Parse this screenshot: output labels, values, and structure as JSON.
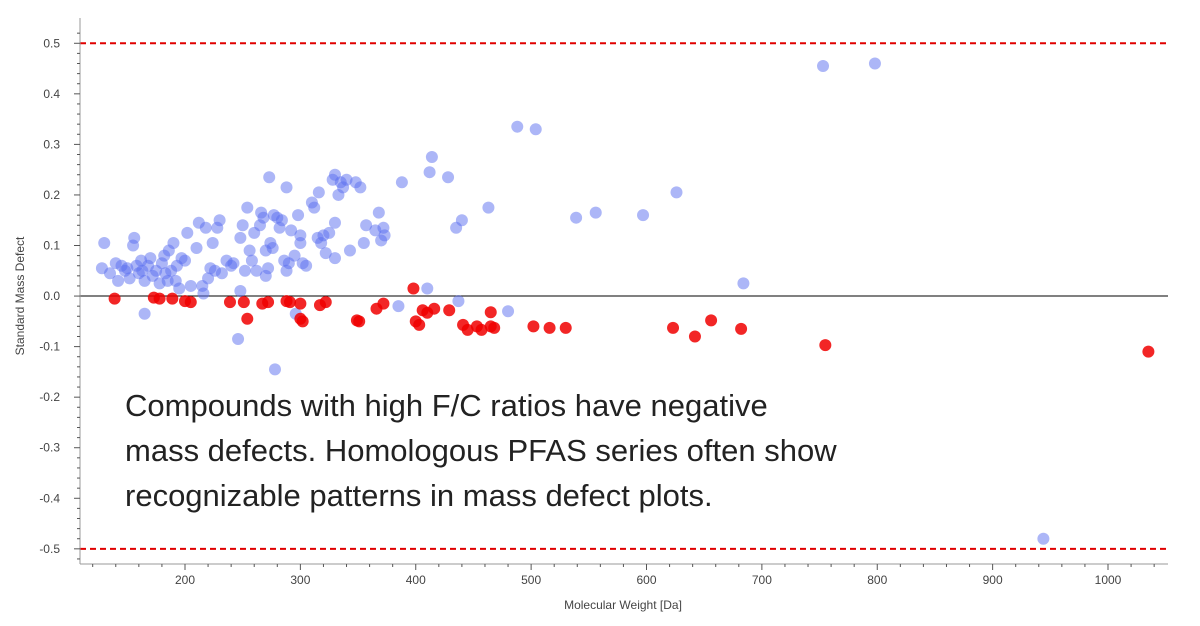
{
  "chart_data": {
    "type": "scatter",
    "title": "",
    "xlabel": "Molecular Weight [Da]",
    "ylabel": "Standard Mass Defect",
    "xlim": [
      109,
      1052
    ],
    "ylim": [
      -0.53,
      0.55
    ],
    "x_ticks": [
      200,
      300,
      400,
      500,
      600,
      700,
      800,
      900,
      1000
    ],
    "y_ticks": [
      "0.5",
      "0.4",
      "0.3",
      "0.2",
      "0.1",
      "0.0",
      "-0.1",
      "-0.2",
      "-0.3",
      "-0.4",
      "-0.5"
    ],
    "grid": false,
    "reference_lines": [
      {
        "y": 0.5,
        "color": "#e00000",
        "style": "dashed"
      },
      {
        "y": -0.5,
        "color": "#e00000",
        "style": "dashed"
      },
      {
        "y": 0.0,
        "color": "#000000",
        "style": "solid"
      }
    ],
    "series": [
      {
        "color": "#5a6ef0",
        "points": [
          [
            128,
            0.055
          ],
          [
            130,
            0.105
          ],
          [
            135,
            0.045
          ],
          [
            140,
            0.065
          ],
          [
            142,
            0.03
          ],
          [
            145,
            0.06
          ],
          [
            148,
            0.05
          ],
          [
            150,
            0.055
          ],
          [
            152,
            0.035
          ],
          [
            155,
            0.1
          ],
          [
            156,
            0.115
          ],
          [
            158,
            0.06
          ],
          [
            160,
            0.045
          ],
          [
            162,
            0.07
          ],
          [
            163,
            0.05
          ],
          [
            165,
            -0.035
          ],
          [
            165,
            0.03
          ],
          [
            168,
            0.06
          ],
          [
            170,
            0.075
          ],
          [
            172,
            0.04
          ],
          [
            175,
            0.05
          ],
          [
            178,
            0.025
          ],
          [
            180,
            0.065
          ],
          [
            182,
            0.08
          ],
          [
            183,
            0.045
          ],
          [
            185,
            0.03
          ],
          [
            186,
            0.09
          ],
          [
            188,
            0.05
          ],
          [
            190,
            0.105
          ],
          [
            192,
            0.03
          ],
          [
            193,
            0.06
          ],
          [
            195,
            0.015
          ],
          [
            197,
            0.075
          ],
          [
            200,
            0.07
          ],
          [
            202,
            0.125
          ],
          [
            205,
            0.02
          ],
          [
            210,
            0.095
          ],
          [
            212,
            0.145
          ],
          [
            215,
            0.02
          ],
          [
            216,
            0.005
          ],
          [
            218,
            0.135
          ],
          [
            220,
            0.035
          ],
          [
            222,
            0.055
          ],
          [
            224,
            0.105
          ],
          [
            226,
            0.05
          ],
          [
            228,
            0.135
          ],
          [
            230,
            0.15
          ],
          [
            232,
            0.045
          ],
          [
            236,
            0.07
          ],
          [
            240,
            0.06
          ],
          [
            242,
            0.065
          ],
          [
            246,
            -0.085
          ],
          [
            248,
            0.115
          ],
          [
            248,
            0.01
          ],
          [
            250,
            0.14
          ],
          [
            252,
            0.05
          ],
          [
            254,
            0.175
          ],
          [
            256,
            0.09
          ],
          [
            258,
            0.07
          ],
          [
            260,
            0.125
          ],
          [
            262,
            0.05
          ],
          [
            265,
            0.14
          ],
          [
            266,
            0.165
          ],
          [
            268,
            0.155
          ],
          [
            270,
            0.04
          ],
          [
            270,
            0.09
          ],
          [
            272,
            0.055
          ],
          [
            273,
            0.235
          ],
          [
            274,
            0.105
          ],
          [
            276,
            0.095
          ],
          [
            277,
            0.16
          ],
          [
            278,
            -0.145
          ],
          [
            280,
            0.155
          ],
          [
            282,
            0.135
          ],
          [
            284,
            0.15
          ],
          [
            286,
            0.07
          ],
          [
            288,
            0.215
          ],
          [
            288,
            0.05
          ],
          [
            290,
            0.065
          ],
          [
            292,
            0.13
          ],
          [
            295,
            0.08
          ],
          [
            296,
            -0.035
          ],
          [
            298,
            0.16
          ],
          [
            300,
            0.12
          ],
          [
            300,
            0.105
          ],
          [
            302,
            0.065
          ],
          [
            305,
            0.06
          ],
          [
            310,
            0.185
          ],
          [
            312,
            0.175
          ],
          [
            315,
            0.115
          ],
          [
            316,
            0.205
          ],
          [
            318,
            0.105
          ],
          [
            320,
            0.12
          ],
          [
            322,
            0.085
          ],
          [
            325,
            0.125
          ],
          [
            328,
            0.23
          ],
          [
            330,
            0.24
          ],
          [
            330,
            0.145
          ],
          [
            330,
            0.075
          ],
          [
            333,
            0.2
          ],
          [
            335,
            0.225
          ],
          [
            337,
            0.215
          ],
          [
            340,
            0.23
          ],
          [
            343,
            0.09
          ],
          [
            348,
            0.225
          ],
          [
            352,
            0.215
          ],
          [
            355,
            0.105
          ],
          [
            357,
            0.14
          ],
          [
            365,
            0.13
          ],
          [
            368,
            0.165
          ],
          [
            370,
            0.11
          ],
          [
            372,
            0.135
          ],
          [
            373,
            0.12
          ],
          [
            385,
            -0.02
          ],
          [
            388,
            0.225
          ],
          [
            410,
            0.015
          ],
          [
            412,
            0.245
          ],
          [
            414,
            0.275
          ],
          [
            428,
            0.235
          ],
          [
            435,
            0.135
          ],
          [
            437,
            -0.01
          ],
          [
            440,
            0.15
          ],
          [
            463,
            0.175
          ],
          [
            480,
            -0.03
          ],
          [
            488,
            0.335
          ],
          [
            504,
            0.33
          ],
          [
            539,
            0.155
          ],
          [
            556,
            0.165
          ],
          [
            597,
            0.16
          ],
          [
            626,
            0.205
          ],
          [
            684,
            0.025
          ],
          [
            753,
            0.455
          ],
          [
            798,
            0.46
          ],
          [
            944,
            -0.48
          ]
        ]
      },
      {
        "color": "#f00000",
        "points": [
          [
            139,
            -0.005
          ],
          [
            173,
            -0.003
          ],
          [
            178,
            -0.005
          ],
          [
            189,
            -0.005
          ],
          [
            200,
            -0.01
          ],
          [
            205,
            -0.012
          ],
          [
            239,
            -0.012
          ],
          [
            251,
            -0.012
          ],
          [
            254,
            -0.045
          ],
          [
            267,
            -0.015
          ],
          [
            272,
            -0.012
          ],
          [
            288,
            -0.01
          ],
          [
            291,
            -0.012
          ],
          [
            300,
            -0.015
          ],
          [
            300,
            -0.045
          ],
          [
            302,
            -0.05
          ],
          [
            317,
            -0.018
          ],
          [
            322,
            -0.012
          ],
          [
            349,
            -0.048
          ],
          [
            351,
            -0.05
          ],
          [
            366,
            -0.025
          ],
          [
            372,
            -0.015
          ],
          [
            398,
            0.015
          ],
          [
            400,
            -0.05
          ],
          [
            403,
            -0.057
          ],
          [
            406,
            -0.028
          ],
          [
            410,
            -0.033
          ],
          [
            416,
            -0.025
          ],
          [
            429,
            -0.028
          ],
          [
            441,
            -0.057
          ],
          [
            445,
            -0.067
          ],
          [
            453,
            -0.06
          ],
          [
            457,
            -0.067
          ],
          [
            465,
            -0.032
          ],
          [
            465,
            -0.06
          ],
          [
            468,
            -0.063
          ],
          [
            502,
            -0.06
          ],
          [
            516,
            -0.063
          ],
          [
            530,
            -0.063
          ],
          [
            623,
            -0.063
          ],
          [
            642,
            -0.08
          ],
          [
            656,
            -0.048
          ],
          [
            682,
            -0.065
          ],
          [
            755,
            -0.097
          ],
          [
            1035,
            -0.11
          ]
        ]
      }
    ]
  },
  "annotation": {
    "lines": [
      "Compounds with high F/C ratios have negative",
      "mass defects. Homologous PFAS series often show",
      "recognizable patterns in mass defect plots."
    ]
  }
}
